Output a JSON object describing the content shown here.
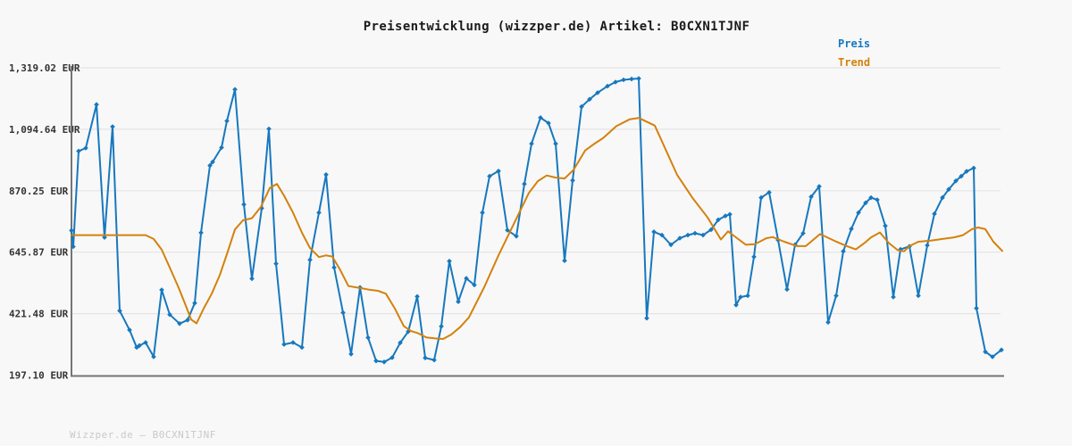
{
  "title": "Preisentwicklung (wizzper.de) Artikel: B0CXN1TJNF",
  "legend": {
    "items": [
      {
        "label": "Preis",
        "color": "#1778be"
      },
      {
        "label": "Trend",
        "color": "#d4810c"
      }
    ]
  },
  "footer": "Wizzper.de – B0CXN1TJNF",
  "colors": {
    "background": "#f8f8f8",
    "grid": "#e4e4e4",
    "spine": "#757575",
    "tick_label": "#333333",
    "title": "#1a1a1a",
    "footer_text": "#c9c9c9"
  },
  "chart_data": {
    "type": "line",
    "title": "Preisentwicklung (wizzper.de) Artikel: B0CXN1TJNF",
    "ylabel": "",
    "xlabel": "",
    "x_axis_labels_visible": false,
    "grid": true,
    "legend_position": "top-right",
    "ylim": [
      197.1,
      1319.02
    ],
    "y_ticks": [
      {
        "value": 197.1,
        "label": "197.10 EUR"
      },
      {
        "value": 421.48,
        "label": "421.48 EUR"
      },
      {
        "value": 645.87,
        "label": "645.87 EUR"
      },
      {
        "value": 870.25,
        "label": "870.25 EUR"
      },
      {
        "value": 1094.64,
        "label": "1,094.64 EUR"
      },
      {
        "value": 1319.02,
        "label": "1,319.02 EUR"
      }
    ],
    "y_unit": "EUR",
    "series": [
      {
        "name": "Preis",
        "color": "#1778be",
        "marker": "diamond",
        "points": [
          [
            80,
            725
          ],
          [
            82,
            666
          ],
          [
            88,
            1015
          ],
          [
            96,
            1026
          ],
          [
            108,
            1185
          ],
          [
            117,
            700
          ],
          [
            126,
            1104
          ],
          [
            134,
            432
          ],
          [
            145,
            362
          ],
          [
            153,
            298
          ],
          [
            156,
            305
          ],
          [
            163,
            316
          ],
          [
            172,
            264
          ],
          [
            181,
            508
          ],
          [
            190,
            418
          ],
          [
            201,
            385
          ],
          [
            210,
            398
          ],
          [
            218,
            460
          ],
          [
            225,
            717
          ],
          [
            235,
            962
          ],
          [
            238,
            975
          ],
          [
            248,
            1028
          ],
          [
            254,
            1125
          ],
          [
            263,
            1240
          ],
          [
            273,
            820
          ],
          [
            282,
            549
          ],
          [
            293,
            806
          ],
          [
            301,
            1096
          ],
          [
            309,
            604
          ],
          [
            318,
            309
          ],
          [
            328,
            316
          ],
          [
            338,
            298
          ],
          [
            347,
            618
          ],
          [
            357,
            790
          ],
          [
            365,
            929
          ],
          [
            374,
            590
          ],
          [
            384,
            425
          ],
          [
            393,
            274
          ],
          [
            403,
            517
          ],
          [
            412,
            334
          ],
          [
            421,
            249
          ],
          [
            430,
            245
          ],
          [
            439,
            261
          ],
          [
            448,
            315
          ],
          [
            457,
            356
          ],
          [
            467,
            484
          ],
          [
            476,
            260
          ],
          [
            486,
            252
          ],
          [
            494,
            375
          ],
          [
            503,
            613
          ],
          [
            513,
            465
          ],
          [
            522,
            550
          ],
          [
            531,
            526
          ],
          [
            540,
            790
          ],
          [
            548,
            923
          ],
          [
            558,
            942
          ],
          [
            568,
            726
          ],
          [
            578,
            704
          ],
          [
            587,
            895
          ],
          [
            595,
            1042
          ],
          [
            605,
            1137
          ],
          [
            614,
            1117
          ],
          [
            622,
            1042
          ],
          [
            632,
            615
          ],
          [
            641,
            908
          ],
          [
            651,
            1177
          ],
          [
            660,
            1204
          ],
          [
            669,
            1228
          ],
          [
            680,
            1252
          ],
          [
            689,
            1267
          ],
          [
            698,
            1275
          ],
          [
            707,
            1278
          ],
          [
            715,
            1280
          ],
          [
            724,
            405
          ],
          [
            732,
            720
          ],
          [
            741,
            708
          ],
          [
            751,
            673
          ],
          [
            761,
            697
          ],
          [
            770,
            708
          ],
          [
            778,
            715
          ],
          [
            787,
            708
          ],
          [
            796,
            728
          ],
          [
            804,
            764
          ],
          [
            812,
            778
          ],
          [
            817,
            784
          ],
          [
            824,
            453
          ],
          [
            829,
            482
          ],
          [
            837,
            487
          ],
          [
            844,
            629
          ],
          [
            852,
            845
          ],
          [
            861,
            864
          ],
          [
            871,
            690
          ],
          [
            881,
            510
          ],
          [
            890,
            673
          ],
          [
            899,
            715
          ],
          [
            908,
            848
          ],
          [
            917,
            886
          ],
          [
            927,
            390
          ],
          [
            936,
            487
          ],
          [
            944,
            649
          ],
          [
            953,
            731
          ],
          [
            961,
            790
          ],
          [
            969,
            826
          ],
          [
            975,
            845
          ],
          [
            982,
            837
          ],
          [
            991,
            742
          ],
          [
            1000,
            482
          ],
          [
            1008,
            656
          ],
          [
            1018,
            667
          ],
          [
            1028,
            487
          ],
          [
            1038,
            671
          ],
          [
            1046,
            786
          ],
          [
            1055,
            845
          ],
          [
            1062,
            875
          ],
          [
            1070,
            906
          ],
          [
            1076,
            923
          ],
          [
            1082,
            941
          ],
          [
            1090,
            953
          ],
          [
            1093,
            441
          ],
          [
            1103,
            282
          ],
          [
            1111,
            264
          ],
          [
            1121,
            289
          ]
        ]
      },
      {
        "name": "Trend",
        "color": "#d4810c",
        "marker": "none",
        "points": [
          [
            80,
            708
          ],
          [
            120,
            708
          ],
          [
            163,
            708
          ],
          [
            172,
            694
          ],
          [
            181,
            655
          ],
          [
            190,
            590
          ],
          [
            200,
            516
          ],
          [
            208,
            450
          ],
          [
            214,
            400
          ],
          [
            220,
            386
          ],
          [
            228,
            440
          ],
          [
            237,
            494
          ],
          [
            246,
            562
          ],
          [
            255,
            648
          ],
          [
            263,
            729
          ],
          [
            272,
            762
          ],
          [
            282,
            770
          ],
          [
            292,
            811
          ],
          [
            302,
            880
          ],
          [
            310,
            895
          ],
          [
            318,
            852
          ],
          [
            328,
            790
          ],
          [
            338,
            717
          ],
          [
            347,
            661
          ],
          [
            357,
            628
          ],
          [
            365,
            634
          ],
          [
            372,
            630
          ],
          [
            381,
            580
          ],
          [
            390,
            522
          ],
          [
            403,
            515
          ],
          [
            413,
            509
          ],
          [
            423,
            505
          ],
          [
            432,
            494
          ],
          [
            442,
            440
          ],
          [
            452,
            376
          ],
          [
            460,
            358
          ],
          [
            468,
            350
          ],
          [
            477,
            335
          ],
          [
            487,
            331
          ],
          [
            496,
            329
          ],
          [
            505,
            345
          ],
          [
            515,
            372
          ],
          [
            525,
            408
          ],
          [
            542,
            518
          ],
          [
            558,
            634
          ],
          [
            575,
            748
          ],
          [
            592,
            862
          ],
          [
            602,
            905
          ],
          [
            612,
            926
          ],
          [
            622,
            918
          ],
          [
            632,
            915
          ],
          [
            642,
            946
          ],
          [
            655,
            1017
          ],
          [
            665,
            1041
          ],
          [
            675,
            1062
          ],
          [
            690,
            1106
          ],
          [
            705,
            1131
          ],
          [
            715,
            1136
          ],
          [
            733,
            1108
          ],
          [
            758,
            928
          ],
          [
            775,
            845
          ],
          [
            792,
            773
          ],
          [
            807,
            692
          ],
          [
            815,
            722
          ],
          [
            825,
            697
          ],
          [
            835,
            673
          ],
          [
            845,
            675
          ],
          [
            858,
            697
          ],
          [
            865,
            701
          ],
          [
            878,
            684
          ],
          [
            892,
            668
          ],
          [
            902,
            668
          ],
          [
            918,
            712
          ],
          [
            935,
            686
          ],
          [
            948,
            668
          ],
          [
            958,
            656
          ],
          [
            968,
            680
          ],
          [
            975,
            700
          ],
          [
            985,
            718
          ],
          [
            995,
            679
          ],
          [
            1005,
            653
          ],
          [
            1012,
            649
          ],
          [
            1018,
            668
          ],
          [
            1028,
            684
          ],
          [
            1042,
            688
          ],
          [
            1055,
            694
          ],
          [
            1068,
            700
          ],
          [
            1078,
            708
          ],
          [
            1088,
            730
          ],
          [
            1095,
            736
          ],
          [
            1103,
            730
          ],
          [
            1112,
            684
          ],
          [
            1122,
            650
          ]
        ]
      }
    ]
  }
}
